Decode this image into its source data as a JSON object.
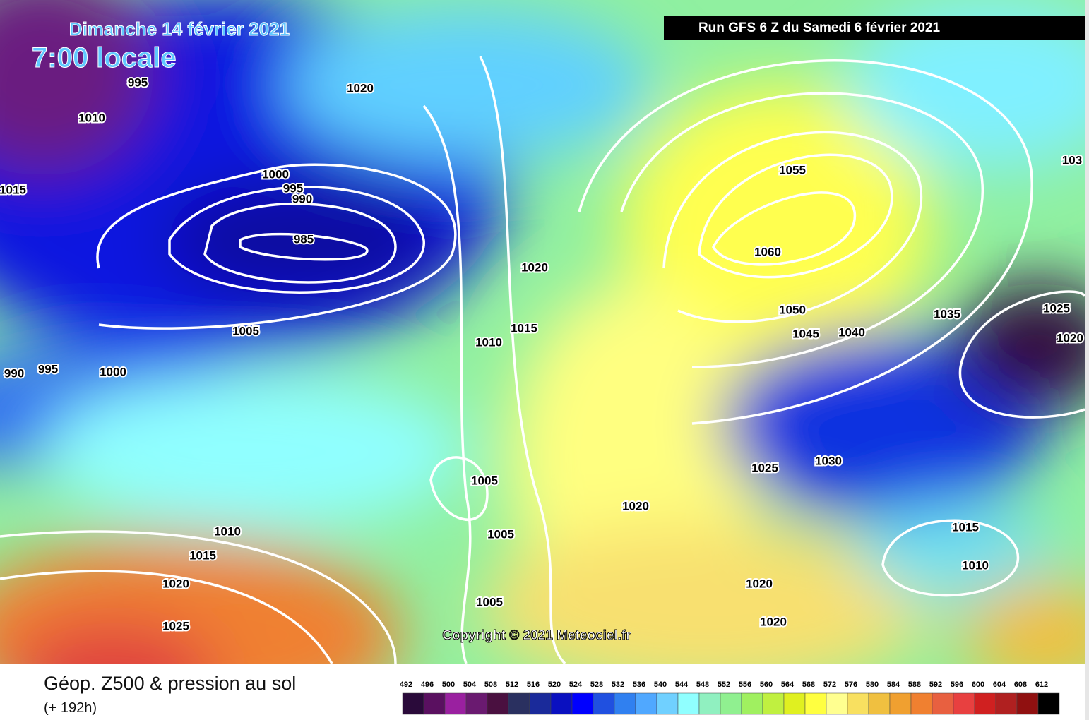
{
  "header": {
    "date": "Dimanche 14 février 2021",
    "time": "7:00 locale",
    "run": "Run GFS 6 Z du Samedi 6 février 2021"
  },
  "isobar_labels": [
    "995",
    "1020",
    "1010",
    "1015",
    "1000",
    "995",
    "990",
    "985",
    "1005",
    "990",
    "995",
    "1000",
    "1020",
    "1015",
    "1010",
    "1005",
    "1005",
    "1005",
    "1010",
    "1015",
    "1020",
    "1025",
    "1055",
    "1060",
    "1050",
    "1045",
    "1040",
    "1035",
    "1025",
    "1020",
    "103",
    "1025",
    "1030",
    "1020",
    "1015",
    "1010",
    "1020",
    "1020"
  ],
  "footer": {
    "copyright": "Copyright © 2021 Meteociel.fr",
    "title": "Géop. Z500 & pression au sol",
    "subtitle": "(+ 192h)"
  },
  "legend": {
    "ticks": [
      492,
      496,
      500,
      504,
      508,
      512,
      516,
      520,
      524,
      528,
      532,
      536,
      540,
      544,
      548,
      552,
      556,
      560,
      564,
      568,
      572,
      576,
      580,
      584,
      588,
      592,
      596,
      600,
      604,
      608,
      612
    ],
    "colors": [
      "#2a0a3a",
      "#5a1060",
      "#9a20a0",
      "#6a1a70",
      "#4a1040",
      "#2a3060",
      "#1a2a9a",
      "#0a10c0",
      "#0000ff",
      "#2050e0",
      "#3080f0",
      "#50a8ff",
      "#70d0ff",
      "#90ffff",
      "#90f0c0",
      "#90f090",
      "#a0f060",
      "#c0f040",
      "#e0f020",
      "#ffff40",
      "#ffff90",
      "#f8e060",
      "#f0c040",
      "#f0a030",
      "#f08030",
      "#e86040",
      "#e84040",
      "#d02020",
      "#b02020",
      "#901010",
      "#000000"
    ]
  }
}
